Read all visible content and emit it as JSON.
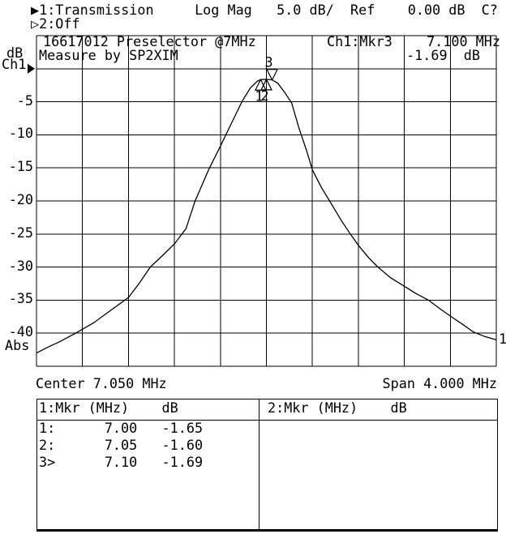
{
  "colors": {
    "foreground": "#000000",
    "background": "#ffffff"
  },
  "status_bar": {
    "line1": "▶1:Transmission     Log Mag   5.0 dB/  Ref    0.00 dB  C?",
    "line2": "▷2:Off",
    "channel1": {
      "id": "1",
      "format": "Transmission",
      "display": "Log Mag",
      "scale": "5.0 dB/",
      "ref_label": "Ref",
      "ref_value": "0.00 dB",
      "status_flag": "C?"
    },
    "channel2": {
      "id": "2",
      "state": "Off"
    }
  },
  "y_axis": {
    "unit": "dB",
    "channel": "Ch1",
    "ref_pointer": "▶",
    "ticks": [
      "-5",
      "-10",
      "-15",
      "-20",
      "-25",
      "-30",
      "-35",
      "-40"
    ],
    "bottom_label": "Abs"
  },
  "x_axis": {
    "center": "Center 7.050 MHz",
    "span": "Span 4.000 MHz"
  },
  "graph": {
    "annotation_line1": "16617012 Preselector @7MHz",
    "annotation_line2": "Measure by SP2XIM",
    "marker_readout": {
      "label": "Ch1:Mkr3",
      "freq": "7.100 MHz",
      "level": "-1.69  dB"
    },
    "trace_number": "1"
  },
  "chart_data": {
    "type": "line",
    "title": "16617012 Preselector @7MHz",
    "x_center_mhz": 7.05,
    "x_span_mhz": 4.0,
    "x_range_mhz": [
      5.05,
      9.05
    ],
    "y_ref_db": 0.0,
    "y_db_per_div": 5.0,
    "y_range_db": [
      -45,
      5
    ],
    "grid_divisions": [
      10,
      10
    ],
    "series": [
      {
        "name": "Ch1 Transmission Log Mag",
        "points_mhz_db": [
          [
            5.05,
            -43.0
          ],
          [
            5.15,
            -42.1
          ],
          [
            5.25,
            -41.3
          ],
          [
            5.39,
            -40.0
          ],
          [
            5.55,
            -38.4
          ],
          [
            5.7,
            -36.5
          ],
          [
            5.85,
            -34.6
          ],
          [
            5.95,
            -32.3
          ],
          [
            6.04,
            -30.0
          ],
          [
            6.15,
            -28.2
          ],
          [
            6.25,
            -26.5
          ],
          [
            6.35,
            -24.2
          ],
          [
            6.43,
            -20.0
          ],
          [
            6.55,
            -15.2
          ],
          [
            6.65,
            -11.7
          ],
          [
            6.75,
            -8.1
          ],
          [
            6.84,
            -4.9
          ],
          [
            6.91,
            -2.9
          ],
          [
            6.97,
            -1.9
          ],
          [
            7.0,
            -1.65
          ],
          [
            7.05,
            -1.6
          ],
          [
            7.1,
            -1.69
          ],
          [
            7.15,
            -2.2
          ],
          [
            7.21,
            -3.6
          ],
          [
            7.27,
            -5.2
          ],
          [
            7.33,
            -8.8
          ],
          [
            7.4,
            -12.4
          ],
          [
            7.45,
            -15.3
          ],
          [
            7.53,
            -18.0
          ],
          [
            7.6,
            -20.0
          ],
          [
            7.7,
            -22.9
          ],
          [
            7.78,
            -25.0
          ],
          [
            7.85,
            -26.7
          ],
          [
            7.94,
            -28.6
          ],
          [
            8.02,
            -30.0
          ],
          [
            8.13,
            -31.6
          ],
          [
            8.25,
            -32.9
          ],
          [
            8.35,
            -34.0
          ],
          [
            8.46,
            -35.0
          ],
          [
            8.56,
            -36.3
          ],
          [
            8.65,
            -37.4
          ],
          [
            8.76,
            -38.7
          ],
          [
            8.85,
            -39.8
          ],
          [
            8.95,
            -40.5
          ],
          [
            9.05,
            -41.0
          ]
        ]
      }
    ],
    "markers": [
      {
        "id": "1",
        "mhz": 7.0,
        "db": -1.65,
        "shape": "up-triangle",
        "active": false
      },
      {
        "id": "2",
        "mhz": 7.05,
        "db": -1.6,
        "shape": "up-triangle",
        "active": false
      },
      {
        "id": "3",
        "mhz": 7.1,
        "db": -1.69,
        "shape": "down-triangle",
        "active": true
      }
    ]
  },
  "marker_table": {
    "panels": [
      {
        "header": "1:Mkr (MHz)    dB",
        "rows": [
          {
            "label": "1:",
            "mhz": "7.00",
            "db": "-1.65"
          },
          {
            "label": "2:",
            "mhz": "7.05",
            "db": "-1.60"
          },
          {
            "label": "3>",
            "mhz": "7.10",
            "db": "-1.69"
          }
        ]
      },
      {
        "header": "2:Mkr (MHz)    dB",
        "rows": []
      }
    ]
  }
}
